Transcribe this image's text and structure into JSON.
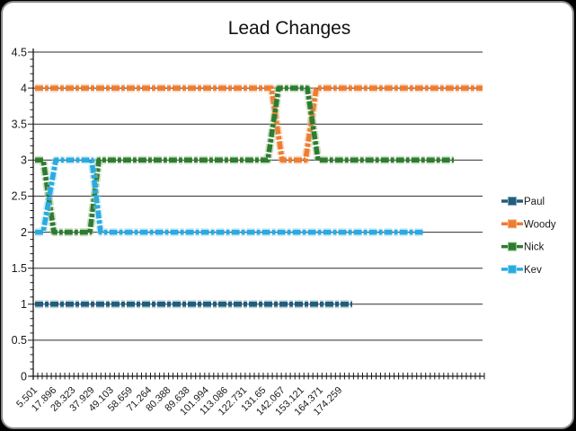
{
  "window": {
    "background_color": "#000000",
    "card_background": "#ffffff",
    "card_border_color": "#8a8a8a"
  },
  "chart_data": {
    "type": "line",
    "title": "Lead Changes",
    "grid": true,
    "legend_position": "right",
    "x_encoding": "points use [fraction_of_x_axis_width, position_value]",
    "y_axis": {
      "min": 0,
      "max": 4.5,
      "major_step": 0.5,
      "minor_step": 0.1,
      "tick_labels": [
        "4.5",
        "4",
        "3.5",
        "3",
        "2.5",
        "2",
        "1.5",
        "1",
        "0.5",
        "0"
      ]
    },
    "x_axis": {
      "tick_labels": [
        "5.501",
        "17.896",
        "28.323",
        "37.929",
        "49.103",
        "58.659",
        "71.264",
        "80.388",
        "89.638",
        "101.994",
        "113.086",
        "122.731",
        "131.65",
        "142.067",
        "153.121",
        "164.371",
        "174.259"
      ],
      "minor_tick_count": 101,
      "label_rotation_deg": -45
    },
    "series": [
      {
        "name": "Paul",
        "color": "#215E7C",
        "edge_color": "#7FA3B5",
        "points": [
          [
            0.004,
            1
          ],
          [
            0.71,
            1
          ]
        ]
      },
      {
        "name": "Woody",
        "color": "#ED7D31",
        "edge_color": "#F5B183",
        "points": [
          [
            0.004,
            4
          ],
          [
            0.53,
            4
          ],
          [
            0.554,
            3
          ],
          [
            0.606,
            3
          ],
          [
            0.63,
            4
          ],
          [
            1.0,
            4
          ]
        ]
      },
      {
        "name": "Nick",
        "color": "#2E7B33",
        "edge_color": "#93C47D",
        "points": [
          [
            0.004,
            3
          ],
          [
            0.022,
            3
          ],
          [
            0.046,
            2
          ],
          [
            0.126,
            2
          ],
          [
            0.146,
            3
          ],
          [
            0.522,
            3
          ],
          [
            0.546,
            4
          ],
          [
            0.61,
            4
          ],
          [
            0.634,
            3
          ],
          [
            0.936,
            3
          ]
        ]
      },
      {
        "name": "Kev",
        "color": "#2BAAE1",
        "edge_color": "#9BDCF5",
        "points": [
          [
            0.004,
            2
          ],
          [
            0.022,
            2
          ],
          [
            0.05,
            3
          ],
          [
            0.13,
            3
          ],
          [
            0.15,
            2
          ],
          [
            0.87,
            2
          ]
        ]
      }
    ]
  }
}
